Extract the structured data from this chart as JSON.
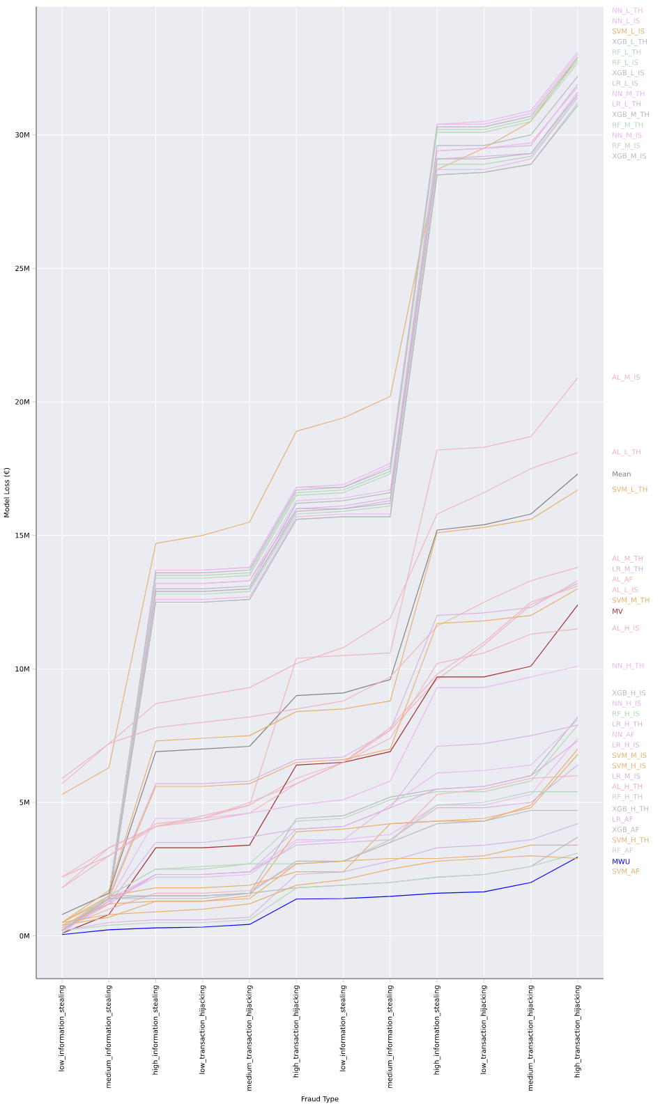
{
  "chart_data": {
    "type": "line",
    "xlabel": "Fraud Type",
    "ylabel": "Model Loss (€)",
    "categories": [
      "low_information_stealing",
      "medium_information_stealing",
      "high_information_stealing",
      "low_transaction_hijacking",
      "medium_transaction_hijacking",
      "high_transaction_hijacking",
      "low_information_stealing",
      "medium_information_stealing",
      "high_information_stealing",
      "low_transaction_hijacking",
      "medium_transaction_hijacking",
      "high_transaction_hijacking"
    ],
    "ylim": [
      -1.6,
      34.8
    ],
    "yticks": [
      {
        "value": 0,
        "label": "0M"
      },
      {
        "value": 5,
        "label": "5M"
      },
      {
        "value": 10,
        "label": "10M"
      },
      {
        "value": 15,
        "label": "15M"
      },
      {
        "value": 20,
        "label": "20M"
      },
      {
        "value": 25,
        "label": "25M"
      },
      {
        "value": 30,
        "label": "30M"
      }
    ],
    "grid": true,
    "legend": false,
    "marker": "none",
    "line_style": "solid",
    "series": [
      {
        "name": "NN_L_TH",
        "color": "#ecb6ef",
        "values": [
          0.2,
          1.5,
          13.7,
          13.7,
          13.8,
          16.8,
          16.9,
          17.7,
          30.4,
          30.5,
          30.9,
          33.1
        ]
      },
      {
        "name": "NN_L_IS",
        "color": "#ecb6ef",
        "values": [
          0.2,
          1.5,
          13.7,
          13.7,
          13.8,
          16.8,
          16.8,
          17.6,
          30.4,
          30.4,
          30.8,
          33.0
        ]
      },
      {
        "name": "SVM_L_IS",
        "color": "#e8b070",
        "values": [
          5.3,
          6.3,
          14.7,
          15.0,
          15.5,
          18.9,
          19.4,
          20.2,
          28.7,
          29.5,
          30.5,
          32.9
        ]
      },
      {
        "name": "XGB_L_TH",
        "color": "#b8b9be",
        "values": [
          0.2,
          1.5,
          13.6,
          13.6,
          13.7,
          16.7,
          16.8,
          17.5,
          30.3,
          30.3,
          30.7,
          32.9
        ]
      },
      {
        "name": "RF_L_TH",
        "color": "#b6d6b8",
        "values": [
          0.2,
          1.5,
          13.5,
          13.5,
          13.6,
          16.6,
          16.7,
          17.4,
          30.2,
          30.2,
          30.6,
          32.8
        ]
      },
      {
        "name": "RF_L_IS",
        "color": "#b6d6b8",
        "values": [
          0.2,
          1.4,
          13.4,
          13.4,
          13.5,
          16.5,
          16.6,
          17.3,
          30.1,
          30.1,
          30.5,
          32.7
        ]
      },
      {
        "name": "XGB_L_IS",
        "color": "#b8b9be",
        "values": [
          0.2,
          1.4,
          13.0,
          13.0,
          13.1,
          16.2,
          16.3,
          16.6,
          29.6,
          29.6,
          30.0,
          32.2
        ]
      },
      {
        "name": "LR_L_IS",
        "color": "#d9b4e0",
        "values": [
          0.2,
          1.4,
          13.2,
          13.2,
          13.3,
          16.0,
          16.1,
          16.4,
          29.4,
          29.5,
          29.6,
          31.9
        ]
      },
      {
        "name": "NN_M_TH",
        "color": "#ecb6ef",
        "values": [
          0.2,
          1.4,
          13.2,
          13.2,
          13.3,
          16.3,
          16.4,
          16.7,
          29.4,
          29.5,
          29.7,
          31.8
        ]
      },
      {
        "name": "LR_L_TH",
        "color": "#d9b4e0",
        "values": [
          0.2,
          1.4,
          12.9,
          12.9,
          13.0,
          16.0,
          16.0,
          16.3,
          29.1,
          29.2,
          29.3,
          31.6
        ]
      },
      {
        "name": "XGB_M_TH",
        "color": "#b8b9be",
        "values": [
          0.2,
          1.4,
          12.9,
          12.9,
          13.0,
          15.9,
          16.0,
          16.2,
          29.1,
          29.1,
          29.3,
          31.5
        ]
      },
      {
        "name": "RF_M_TH",
        "color": "#b6d6b8",
        "values": [
          0.2,
          1.3,
          12.8,
          12.8,
          12.9,
          15.8,
          15.9,
          16.1,
          28.9,
          28.9,
          29.2,
          31.4
        ]
      },
      {
        "name": "NN_M_IS",
        "color": "#ecb6ef",
        "values": [
          0.2,
          1.3,
          12.6,
          12.6,
          12.7,
          15.7,
          15.8,
          15.8,
          28.7,
          28.7,
          29.1,
          31.4
        ]
      },
      {
        "name": "RF_M_IS",
        "color": "#b6d6b8",
        "values": [
          0.2,
          1.3,
          12.5,
          12.5,
          12.6,
          15.6,
          15.7,
          15.7,
          28.5,
          28.6,
          28.9,
          31.2
        ]
      },
      {
        "name": "XGB_M_IS",
        "color": "#b8b9be",
        "values": [
          0.2,
          1.3,
          12.5,
          12.5,
          12.6,
          15.6,
          15.7,
          15.7,
          28.5,
          28.6,
          28.9,
          31.1
        ]
      },
      {
        "name": "AL_M_IS",
        "color": "#f0b4bc",
        "values": [
          2.2,
          3.3,
          4.1,
          4.4,
          4.9,
          10.4,
          10.5,
          10.6,
          18.2,
          18.3,
          18.7,
          20.9
        ]
      },
      {
        "name": "AL_L_TH",
        "color": "#f0b4bc",
        "values": [
          5.9,
          7.2,
          8.7,
          9.0,
          9.3,
          10.2,
          10.8,
          11.9,
          15.8,
          16.6,
          17.5,
          18.1
        ]
      },
      {
        "name": "Mean",
        "color": "#808080",
        "values": [
          0.8,
          1.6,
          6.9,
          7.0,
          7.1,
          9.0,
          9.1,
          9.6,
          15.2,
          15.4,
          15.8,
          17.3
        ]
      },
      {
        "name": "SVM_L_TH",
        "color": "#e8b070",
        "values": [
          0.5,
          1.7,
          7.3,
          7.4,
          7.5,
          8.4,
          8.5,
          8.8,
          15.1,
          15.3,
          15.6,
          16.7
        ]
      },
      {
        "name": "AL_M_TH",
        "color": "#f0b4bc",
        "values": [
          5.7,
          7.2,
          7.8,
          8.0,
          8.2,
          8.5,
          8.8,
          9.7,
          11.6,
          12.5,
          13.3,
          13.8
        ]
      },
      {
        "name": "LR_M_TH",
        "color": "#d9b4e0",
        "values": [
          0.3,
          1.5,
          5.7,
          5.7,
          5.8,
          6.6,
          6.7,
          7.7,
          12.0,
          12.1,
          12.3,
          13.3
        ]
      },
      {
        "name": "AL_AF",
        "color": "#f0b4bc",
        "values": [
          1.8,
          3.3,
          4.1,
          4.5,
          4.9,
          5.9,
          6.5,
          7.7,
          9.6,
          10.9,
          12.4,
          13.2
        ]
      },
      {
        "name": "AL_L_IS",
        "color": "#f0b4bc",
        "values": [
          2.2,
          3.0,
          4.2,
          4.4,
          5.0,
          5.7,
          6.5,
          7.8,
          9.8,
          11.0,
          12.5,
          13.1
        ]
      },
      {
        "name": "SVM_M_TH",
        "color": "#e8b070",
        "values": [
          0.5,
          1.4,
          5.6,
          5.6,
          5.7,
          6.5,
          6.6,
          7.0,
          11.7,
          11.8,
          12.0,
          13.0
        ]
      },
      {
        "name": "MV",
        "color": "#a52a2a",
        "values": [
          0.1,
          0.8,
          3.3,
          3.3,
          3.4,
          6.4,
          6.5,
          6.9,
          9.7,
          9.7,
          10.1,
          12.4
        ]
      },
      {
        "name": "AL_H_IS",
        "color": "#f0b4bc",
        "values": [
          1.8,
          3.0,
          4.1,
          4.3,
          4.6,
          5.7,
          6.5,
          7.4,
          10.2,
          10.6,
          11.3,
          11.5
        ]
      },
      {
        "name": "NN_H_TH",
        "color": "#ecb6ef",
        "values": [
          0.2,
          1.3,
          4.4,
          4.4,
          4.6,
          4.9,
          5.1,
          5.8,
          9.3,
          9.3,
          9.7,
          10.1
        ]
      },
      {
        "name": "XGB_H_IS",
        "color": "#b8b9be",
        "values": [
          0.2,
          1.5,
          1.5,
          1.5,
          1.6,
          4.4,
          4.5,
          5.2,
          5.5,
          5.6,
          6.0,
          8.2
        ]
      },
      {
        "name": "NN_H_IS",
        "color": "#ecb6ef",
        "values": [
          0.2,
          1.3,
          2.2,
          2.2,
          2.3,
          3.5,
          3.6,
          4.9,
          6.1,
          6.2,
          6.4,
          8.1
        ]
      },
      {
        "name": "RF_H_IS",
        "color": "#b6d6b8",
        "values": [
          0.2,
          1.5,
          2.5,
          2.5,
          2.7,
          4.3,
          4.4,
          5.1,
          5.4,
          5.4,
          5.8,
          7.9
        ]
      },
      {
        "name": "LR_H_TH",
        "color": "#d9b4e0",
        "values": [
          0.2,
          1.2,
          3.5,
          3.5,
          3.7,
          4.0,
          4.1,
          4.8,
          7.1,
          7.2,
          7.5,
          7.9
        ]
      },
      {
        "name": "NN_AF",
        "color": "#ecb6ef",
        "values": [
          0.1,
          1.4,
          2.3,
          2.3,
          2.4,
          3.6,
          3.6,
          3.8,
          4.9,
          4.9,
          5.3,
          7.4
        ]
      },
      {
        "name": "LR_H_IS",
        "color": "#d9b4e0",
        "values": [
          0.2,
          1.2,
          2.3,
          2.3,
          2.4,
          4.0,
          4.1,
          4.8,
          5.5,
          5.6,
          6.0,
          7.3
        ]
      },
      {
        "name": "SVM_M_IS",
        "color": "#e8b070",
        "values": [
          0.5,
          1.5,
          1.8,
          1.8,
          1.9,
          2.4,
          2.4,
          4.2,
          4.3,
          4.3,
          4.9,
          7.0
        ]
      },
      {
        "name": "SVM_H_IS",
        "color": "#e8b070",
        "values": [
          0.4,
          0.7,
          1.3,
          1.3,
          1.5,
          3.9,
          4.0,
          4.2,
          4.3,
          4.4,
          4.8,
          6.8
        ]
      },
      {
        "name": "LR_M_IS",
        "color": "#d9b4e0",
        "values": [
          0.2,
          1.3,
          2.3,
          2.3,
          2.4,
          3.4,
          3.5,
          3.6,
          4.8,
          4.8,
          5.0,
          6.4
        ]
      },
      {
        "name": "AL_H_TH",
        "color": "#f0b4bc",
        "values": [
          0.3,
          1.0,
          1.6,
          1.6,
          1.7,
          2.7,
          2.8,
          3.5,
          5.3,
          5.5,
          5.9,
          6.0
        ]
      },
      {
        "name": "RF_H_TH",
        "color": "#b6d6b8",
        "values": [
          0.2,
          1.5,
          2.5,
          2.6,
          2.7,
          2.7,
          2.8,
          3.6,
          4.9,
          5.0,
          5.4,
          5.4
        ]
      },
      {
        "name": "XGB_H_TH",
        "color": "#b8b9be",
        "values": [
          0.2,
          1.4,
          1.4,
          1.4,
          1.6,
          2.8,
          2.8,
          3.5,
          4.2,
          4.3,
          4.7,
          4.7
        ]
      },
      {
        "name": "LR_AF",
        "color": "#d9b4e0",
        "values": [
          0.2,
          0.5,
          0.6,
          0.6,
          0.7,
          2.3,
          2.4,
          2.8,
          3.3,
          3.4,
          3.6,
          4.2
        ]
      },
      {
        "name": "XGB_AF",
        "color": "#b8b9be",
        "values": [
          0.2,
          1.4,
          1.5,
          1.5,
          1.6,
          1.8,
          1.9,
          2.0,
          2.2,
          2.3,
          2.6,
          3.7
        ]
      },
      {
        "name": "SVM_H_TH",
        "color": "#e8b070",
        "values": [
          0.4,
          1.2,
          1.3,
          1.3,
          1.4,
          2.7,
          2.8,
          2.9,
          2.9,
          3.0,
          3.4,
          3.4
        ]
      },
      {
        "name": "RF_AF",
        "color": "#b6d6b8",
        "values": [
          0.2,
          0.4,
          0.5,
          0.5,
          0.6,
          1.8,
          1.9,
          2.0,
          2.2,
          2.3,
          2.6,
          3.1
        ]
      },
      {
        "name": "MWU",
        "color": "#0000ff",
        "values": [
          0.05,
          0.23,
          0.3,
          0.33,
          0.43,
          1.38,
          1.4,
          1.48,
          1.6,
          1.65,
          2.0,
          2.95
        ]
      },
      {
        "name": "SVM_AF",
        "color": "#e8b070",
        "values": [
          0.5,
          0.8,
          0.9,
          1.0,
          1.2,
          1.9,
          2.1,
          2.5,
          2.8,
          2.9,
          3.0,
          2.9
        ]
      }
    ]
  }
}
